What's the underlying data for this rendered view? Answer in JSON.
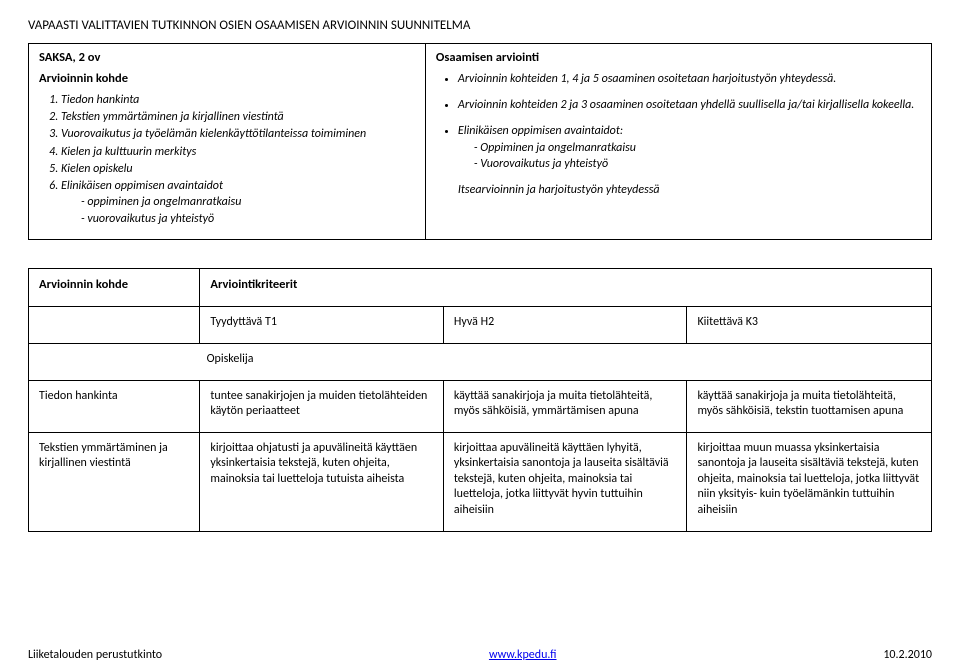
{
  "title": "VAPAASTI VALITTAVIEN TUTKINNON OSIEN OSAAMISEN ARVIOINNIN SUUNNITELMA",
  "left": {
    "heading1": "SAKSA, 2 ov",
    "heading2": "Arvioinnin kohde",
    "items": [
      "Tiedon hankinta",
      "Tekstien ymmärtäminen ja kirjallinen viestintä",
      "Vuorovaikutus ja työelämän kielenkäyttötilanteissa toimiminen",
      "Kielen ja kulttuurin merkitys",
      "Kielen opiskelu",
      "Elinikäisen oppimisen avaintaidot"
    ],
    "sub": [
      "oppiminen ja ongelmanratkaisu",
      "vuorovaikutus ja yhteistyö"
    ]
  },
  "right": {
    "heading": "Osaamisen arviointi",
    "b1": "Arvioinnin kohteiden 1, 4 ja 5 osaaminen osoitetaan harjoitustyön yhteydessä.",
    "b2": "Arvioinnin kohteiden 2 ja 3 osaaminen osoitetaan yhdellä suullisella ja/tai kirjallisella kokeella.",
    "b3": "Elinikäisen oppimisen avaintaidot:",
    "b3sub": [
      "Oppiminen ja ongelmanratkaisu",
      "Vuorovaikutus ja yhteistyö"
    ],
    "b4": "Itsearvioinnin ja harjoitustyön yhteydessä"
  },
  "criteria": {
    "h_left": "Arvioinnin kohde",
    "h_right": "Arviointikriteerit",
    "levels": [
      "Tyydyttävä T1",
      "Hyvä H2",
      "Kiitettävä K3"
    ],
    "opiskelija": "Opiskelija",
    "row1": {
      "label": "Tiedon hankinta",
      "c1": "tuntee sanakirjojen ja muiden tietolähteiden käytön periaatteet",
      "c2": "käyttää sanakirjoja ja muita tietolähteitä, myös sähköisiä, ymmärtämisen apuna",
      "c3": "käyttää sanakirjoja ja muita tietolähteitä, myös sähköisiä, tekstin tuottamisen apuna"
    },
    "row2": {
      "label": "Tekstien ymmärtäminen ja kirjallinen viestintä",
      "c1": "kirjoittaa ohjatusti ja apuvälineitä käyttäen yksinkertaisia tekstejä, kuten ohjeita, mainoksia tai luetteloja tutuista aiheista",
      "c2": "kirjoittaa apuvälineitä käyttäen lyhyitä, yksinkertaisia sanontoja ja lauseita sisältäviä tekstejä, kuten ohjeita, mainoksia tai luetteloja, jotka liittyvät hyvin tuttuihin aiheisiin",
      "c3": "kirjoittaa muun muassa yksinkertaisia sanontoja ja lauseita sisältäviä tekstejä, kuten ohjeita, mainoksia tai luetteloja, jotka liittyvät niin yksityis- kuin työelämänkin tuttuihin aiheisiin"
    }
  },
  "footer": {
    "left": "Liiketalouden perustutkinto",
    "center": "www.kpedu.fi",
    "right": "10.2.2010"
  }
}
